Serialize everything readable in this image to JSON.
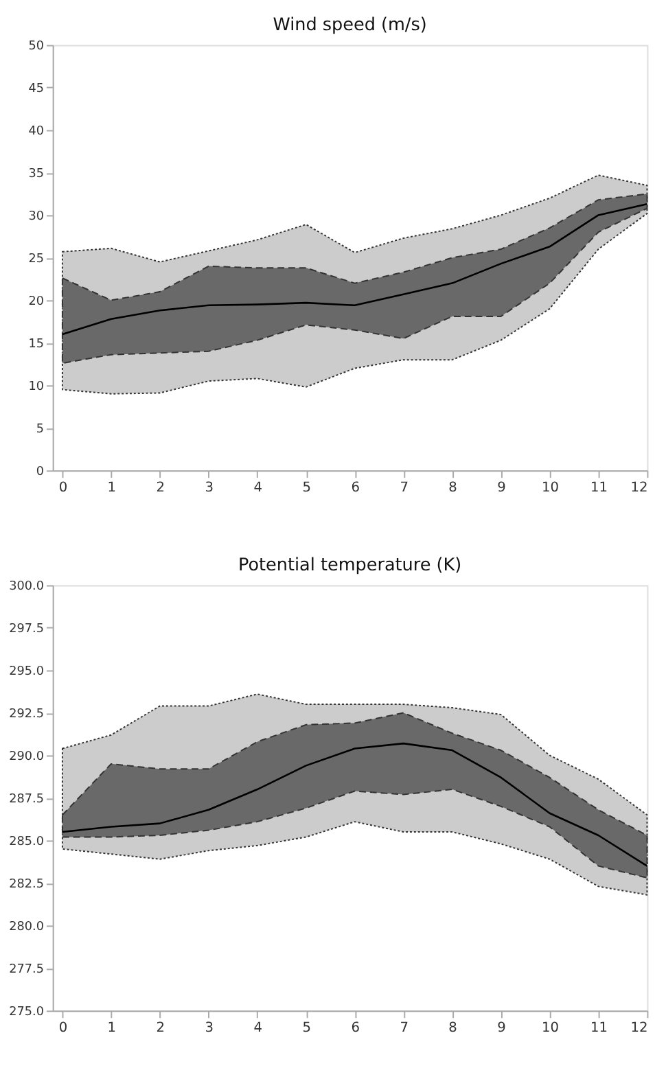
{
  "chart_data": [
    {
      "type": "line",
      "title": "Wind speed (m/s)",
      "x": [
        0,
        1,
        2,
        3,
        4,
        5,
        6,
        7,
        8,
        9,
        10,
        11,
        12
      ],
      "xlim": [
        -0.2,
        12
      ],
      "xticks": [
        0,
        1,
        2,
        3,
        4,
        5,
        6,
        7,
        8,
        9,
        10,
        11,
        12
      ],
      "ylim": [
        0,
        50
      ],
      "yticks": [
        0,
        5,
        10,
        15,
        20,
        25,
        30,
        35,
        40,
        45,
        50
      ],
      "series": [
        {
          "type": "area",
          "color": "#cccccc",
          "line_style": "dotted",
          "values": [
            null,
            null,
            null,
            null,
            null,
            null,
            null,
            null,
            null,
            null,
            null,
            null,
            null
          ],
          "upper": [
            25.7,
            26.1,
            24.5,
            25.8,
            27.1,
            28.9,
            25.6,
            27.3,
            28.4,
            30,
            32,
            34.7,
            33.5
          ],
          "lower": [
            9.5,
            9,
            9.1,
            10.5,
            10.8,
            9.8,
            12,
            13,
            13,
            15.3,
            19,
            26,
            30.2
          ]
        },
        {
          "type": "area",
          "color": "#696969",
          "line_style": "dashed",
          "values": [
            null,
            null,
            null,
            null,
            null,
            null,
            null,
            null,
            null,
            null,
            null,
            null,
            null
          ],
          "upper": [
            22.6,
            20,
            21,
            24,
            23.8,
            23.8,
            22,
            23.3,
            25,
            26,
            28.5,
            31.8,
            32.5
          ],
          "lower": [
            12.6,
            13.6,
            13.8,
            14,
            15.3,
            17.1,
            16.5,
            15.5,
            18.1,
            18.1,
            22,
            28,
            30.8
          ]
        },
        {
          "type": "line",
          "color": "#000000",
          "line_style": "solid",
          "values": [
            16,
            17.8,
            18.8,
            19.4,
            19.5,
            19.7,
            19.4,
            20.7,
            22,
            24.3,
            26.3,
            30,
            31.3
          ]
        }
      ]
    },
    {
      "type": "line",
      "title": "Potential temperature (K)",
      "x": [
        0,
        1,
        2,
        3,
        4,
        5,
        6,
        7,
        8,
        9,
        10,
        11,
        12
      ],
      "xlim": [
        -0.2,
        12
      ],
      "xticks": [
        0,
        1,
        2,
        3,
        4,
        5,
        6,
        7,
        8,
        9,
        10,
        11,
        12
      ],
      "ylim": [
        275,
        300
      ],
      "yticks": [
        {
          "value": 275,
          "label": "275.0"
        },
        {
          "value": 277.5,
          "label": "277.5"
        },
        {
          "value": 280,
          "label": "280.0"
        },
        {
          "value": 282.5,
          "label": "282.5"
        },
        {
          "value": 285,
          "label": "285.0"
        },
        {
          "value": 287.5,
          "label": "287.5"
        },
        {
          "value": 290,
          "label": "290.0"
        },
        {
          "value": 292.5,
          "label": "292.5"
        },
        {
          "value": 295,
          "label": "295.0"
        },
        {
          "value": 297.5,
          "label": "297.5"
        },
        {
          "value": 300,
          "label": "300.0"
        }
      ],
      "series": [
        {
          "type": "area",
          "color": "#cccccc",
          "line_style": "dotted",
          "values": [
            null,
            null,
            null,
            null,
            null,
            null,
            null,
            null,
            null,
            null,
            null,
            null,
            null
          ],
          "upper": [
            290.4,
            291.2,
            292.9,
            292.9,
            293.6,
            293,
            293,
            293,
            292.8,
            292.4,
            290,
            288.6,
            286.5
          ],
          "lower": [
            284.5,
            284.2,
            283.9,
            284.4,
            284.7,
            285.2,
            286.1,
            285.5,
            285.5,
            284.8,
            283.9,
            282.3,
            281.8
          ]
        },
        {
          "type": "area",
          "color": "#696969",
          "line_style": "dashed",
          "values": [
            null,
            null,
            null,
            null,
            null,
            null,
            null,
            null,
            null,
            null,
            null,
            null,
            null
          ],
          "upper": [
            286.5,
            289.5,
            289.2,
            289.2,
            290.8,
            291.8,
            291.9,
            292.5,
            291.3,
            290.3,
            288.7,
            286.8,
            285.3
          ],
          "lower": [
            285.2,
            285.2,
            285.3,
            285.6,
            286.1,
            286.9,
            287.9,
            287.7,
            288,
            287,
            285.8,
            283.5,
            282.8
          ]
        },
        {
          "type": "line",
          "color": "#000000",
          "line_style": "solid",
          "values": [
            285.5,
            285.8,
            286,
            286.8,
            288,
            289.4,
            290.4,
            290.7,
            290.3,
            288.7,
            286.6,
            285.3,
            283.5
          ]
        }
      ]
    }
  ]
}
